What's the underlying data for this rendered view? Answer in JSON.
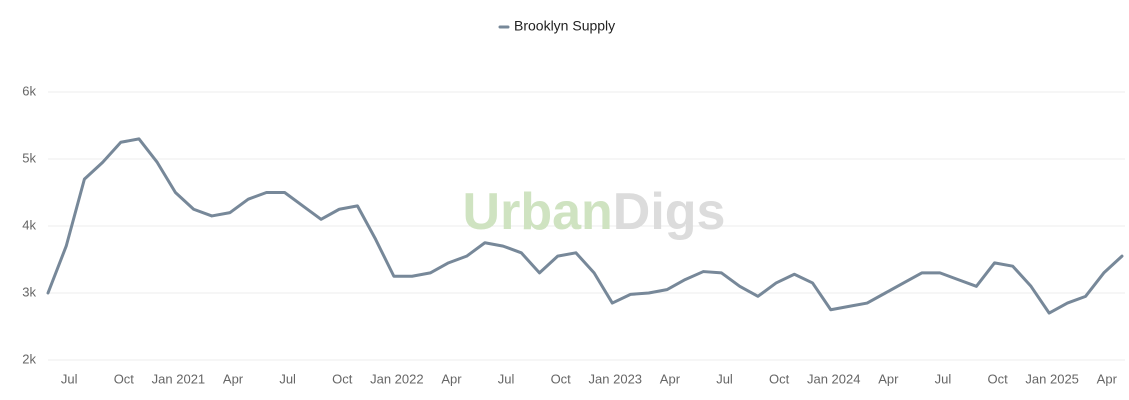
{
  "chart_data": {
    "type": "line",
    "watermark": [
      "Urban",
      "Digs"
    ],
    "legend": "top",
    "grid": true,
    "x": [
      "2020-06",
      "2020-07",
      "2020-08",
      "2020-09",
      "2020-10",
      "2020-11",
      "2020-12",
      "2021-01",
      "2021-02",
      "2021-03",
      "2021-04",
      "2021-05",
      "2021-06",
      "2021-07",
      "2021-08",
      "2021-09",
      "2021-10",
      "2021-11",
      "2021-12",
      "2022-01",
      "2022-02",
      "2022-03",
      "2022-04",
      "2022-05",
      "2022-06",
      "2022-07",
      "2022-08",
      "2022-09",
      "2022-10",
      "2022-11",
      "2022-12",
      "2023-01",
      "2023-02",
      "2023-03",
      "2023-04",
      "2023-05",
      "2023-06",
      "2023-07",
      "2023-08",
      "2023-09",
      "2023-10",
      "2023-11",
      "2023-12",
      "2024-01",
      "2024-02",
      "2024-03",
      "2024-04",
      "2024-05",
      "2024-06",
      "2024-07",
      "2024-08",
      "2024-09",
      "2024-10",
      "2024-11",
      "2024-12",
      "2025-01",
      "2025-02",
      "2025-03",
      "2025-04",
      "2025-05"
    ],
    "series": [
      {
        "name": "Brooklyn Supply",
        "color": "#778899",
        "values": [
          3000,
          3700,
          4700,
          4950,
          5250,
          5300,
          4950,
          4500,
          4250,
          4150,
          4200,
          4400,
          4500,
          4500,
          4300,
          4100,
          4250,
          4300,
          3800,
          3250,
          3250,
          3300,
          3450,
          3550,
          3750,
          3700,
          3600,
          3300,
          3550,
          3600,
          3300,
          2850,
          2980,
          3000,
          3050,
          3200,
          3320,
          3300,
          3100,
          2950,
          3150,
          3280,
          3150,
          2750,
          2800,
          2850,
          3000,
          3150,
          3300,
          3300,
          3200,
          3100,
          3450,
          3400,
          3100,
          2700,
          2850,
          2950,
          3300,
          3550
        ]
      }
    ],
    "xlim": [
      "2020-06",
      "2025-05"
    ],
    "xticks": [
      {
        "value": "2020-07",
        "label": "Jul"
      },
      {
        "value": "2020-10",
        "label": "Oct"
      },
      {
        "value": "2021-01",
        "label": "Jan 2021"
      },
      {
        "value": "2021-04",
        "label": "Apr"
      },
      {
        "value": "2021-07",
        "label": "Jul"
      },
      {
        "value": "2021-10",
        "label": "Oct"
      },
      {
        "value": "2022-01",
        "label": "Jan 2022"
      },
      {
        "value": "2022-04",
        "label": "Apr"
      },
      {
        "value": "2022-07",
        "label": "Jul"
      },
      {
        "value": "2022-10",
        "label": "Oct"
      },
      {
        "value": "2023-01",
        "label": "Jan 2023"
      },
      {
        "value": "2023-04",
        "label": "Apr"
      },
      {
        "value": "2023-07",
        "label": "Jul"
      },
      {
        "value": "2023-10",
        "label": "Oct"
      },
      {
        "value": "2024-01",
        "label": "Jan 2024"
      },
      {
        "value": "2024-04",
        "label": "Apr"
      },
      {
        "value": "2024-07",
        "label": "Jul"
      },
      {
        "value": "2024-10",
        "label": "Oct"
      },
      {
        "value": "2025-01",
        "label": "Jan 2025"
      },
      {
        "value": "2025-04",
        "label": "Apr"
      }
    ],
    "ylim": [
      2000,
      6000
    ],
    "yticks": [
      {
        "value": 2000,
        "label": "2k"
      },
      {
        "value": 3000,
        "label": "3k"
      },
      {
        "value": 4000,
        "label": "4k"
      },
      {
        "value": 5000,
        "label": "5k"
      },
      {
        "value": 6000,
        "label": "6k"
      }
    ]
  }
}
